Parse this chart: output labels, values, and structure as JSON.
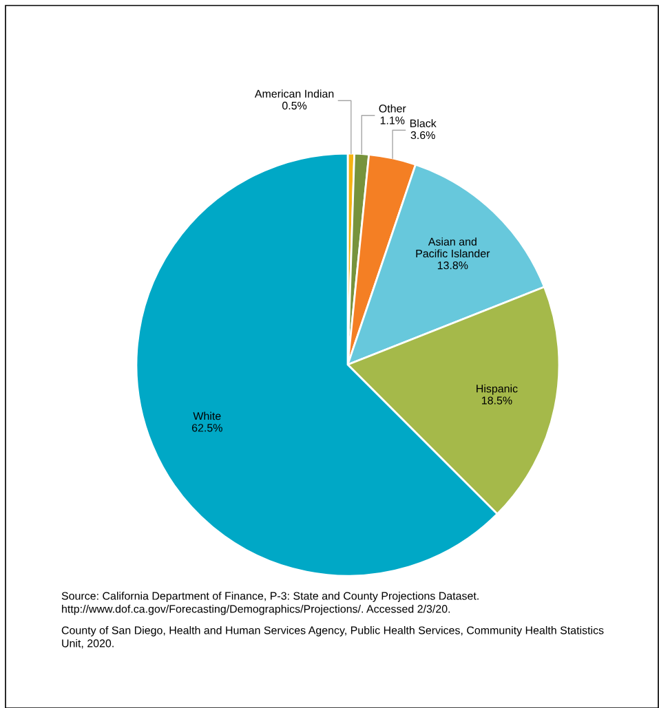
{
  "chart_data": {
    "type": "pie",
    "categories": [
      "American Indian",
      "Other",
      "Black",
      "Asian and Pacific Islander",
      "Hispanic",
      "White"
    ],
    "values": [
      0.5,
      1.1,
      3.6,
      13.8,
      18.5,
      62.5
    ],
    "value_labels": [
      "0.5%",
      "1.1%",
      "3.6%",
      "13.8%",
      "18.5%",
      "62.5%"
    ],
    "colors": [
      "#f5b212",
      "#77933c",
      "#f47f24",
      "#67c8dc",
      "#a5b94a",
      "#00a8c6"
    ],
    "legend": false,
    "annotations": [
      "Source: California Department of Finance, P-3: State and County Projections Dataset. http://www.dof.ca.gov/Forecasting/Demographics/Projections/. Accessed 2/3/20.",
      "County of San Diego, Health and Human Services Agency, Public Health Services, Community Health Statistics Unit, 2020."
    ]
  }
}
